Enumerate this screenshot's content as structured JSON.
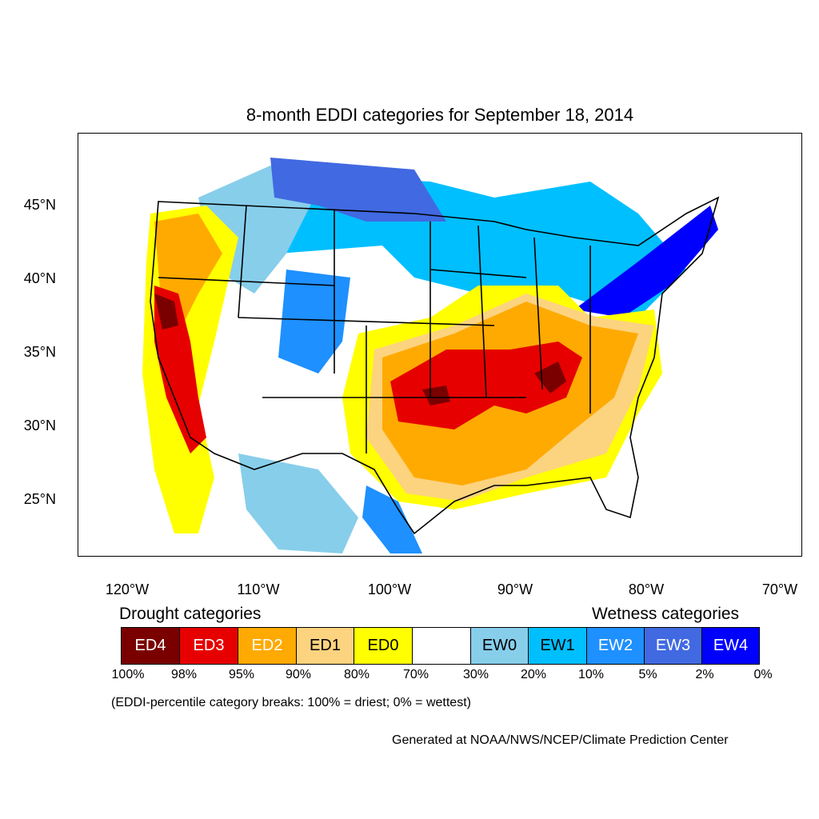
{
  "title": "8-month EDDI categories for September 18, 2014",
  "map": {
    "lat_labels": [
      "45°N",
      "40°N",
      "35°N",
      "30°N",
      "25°N"
    ],
    "lon_labels": [
      "120°W",
      "110°W",
      "100°W",
      "90°W",
      "80°W",
      "70°W"
    ]
  },
  "legend": {
    "drought_heading": "Drought categories",
    "wetness_heading": "Wetness categories",
    "categories": [
      {
        "label": "ED4",
        "color": "#7a0000",
        "text_color": "#ffffff"
      },
      {
        "label": "ED3",
        "color": "#e60000",
        "text_color": "#ffffff"
      },
      {
        "label": "ED2",
        "color": "#ffaa00",
        "text_color": "#ffffff"
      },
      {
        "label": "ED1",
        "color": "#fcd37f",
        "text_color": "#000000"
      },
      {
        "label": "ED0",
        "color": "#ffff00",
        "text_color": "#000000"
      },
      {
        "label": "",
        "color": "#ffffff",
        "text_color": "#000000"
      },
      {
        "label": "EW0",
        "color": "#87ceeb",
        "text_color": "#000000"
      },
      {
        "label": "EW1",
        "color": "#00bfff",
        "text_color": "#000000"
      },
      {
        "label": "EW2",
        "color": "#1e90ff",
        "text_color": "#ffffff"
      },
      {
        "label": "EW3",
        "color": "#4169e1",
        "text_color": "#ffffff"
      },
      {
        "label": "EW4",
        "color": "#0000ff",
        "text_color": "#ffffff"
      }
    ],
    "percentiles": [
      "100%",
      "98%",
      "95%",
      "90%",
      "80%",
      "70%",
      "30%",
      "20%",
      "10%",
      "5%",
      "2%",
      "0%"
    ]
  },
  "note": "(EDDI-percentile category breaks: 100% = driest; 0% = wettest)",
  "credit": "Generated at NOAA/NWS/NCEP/Climate Prediction Center"
}
